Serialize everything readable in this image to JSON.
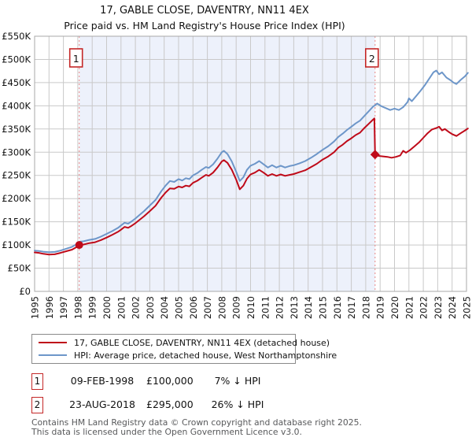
{
  "title": "17, GABLE CLOSE, DAVENTRY, NN11 4EX",
  "subtitle": "Price paid vs. HM Land Registry's House Price Index (HPI)",
  "chart_data": {
    "type": "line",
    "x_range": [
      1995,
      2025
    ],
    "y_range_pounds": [
      0,
      550000
    ],
    "grid": true,
    "legend_position": "below-left",
    "y_tick_values_k": [
      0,
      50,
      100,
      150,
      200,
      250,
      300,
      350,
      400,
      450,
      500,
      550
    ],
    "y_tick_labels": [
      "£0",
      "£50K",
      "£100K",
      "£150K",
      "£200K",
      "£250K",
      "£300K",
      "£350K",
      "£400K",
      "£450K",
      "£500K",
      "£550K"
    ],
    "x_tick_labels": [
      "1995",
      "1996",
      "1997",
      "1998",
      "1999",
      "2000",
      "2001",
      "2002",
      "2003",
      "2004",
      "2005",
      "2006",
      "2007",
      "2008",
      "2009",
      "2010",
      "2011",
      "2012",
      "2013",
      "2014",
      "2015",
      "2016",
      "2017",
      "2018",
      "2019",
      "2020",
      "2021",
      "2022",
      "2023",
      "2024",
      "2025"
    ],
    "shaded_region_years": [
      1998.1,
      2018.65
    ],
    "colors": {
      "property_line": "#bf0a19",
      "hpi_line": "#6d96c9",
      "shade": "#edf1fb",
      "grid": "#c9c9c9",
      "spine": "#a8a8a8",
      "event_dashed": "#e98585",
      "marker_box_border": "#c42727"
    },
    "series": [
      {
        "name": "17, GABLE CLOSE, DAVENTRY, NN11 4EX (detached house)",
        "color_key": "property_line",
        "points_year_priceK": [
          [
            1995.0,
            84
          ],
          [
            1995.3,
            83
          ],
          [
            1995.6,
            81
          ],
          [
            1996.0,
            79.5
          ],
          [
            1996.4,
            80
          ],
          [
            1996.8,
            83
          ],
          [
            1997.2,
            86.5
          ],
          [
            1997.6,
            90
          ],
          [
            1998.0,
            97
          ],
          [
            1998.1,
            100
          ],
          [
            1998.4,
            101
          ],
          [
            1998.8,
            104
          ],
          [
            1999.2,
            106
          ],
          [
            1999.6,
            110.5
          ],
          [
            2000.0,
            116
          ],
          [
            2000.4,
            122
          ],
          [
            2000.8,
            128.5
          ],
          [
            2001.0,
            133
          ],
          [
            2001.25,
            139
          ],
          [
            2001.5,
            137
          ],
          [
            2001.75,
            141.5
          ],
          [
            2002.0,
            147
          ],
          [
            2002.3,
            154.5
          ],
          [
            2002.6,
            162
          ],
          [
            2003.0,
            173
          ],
          [
            2003.4,
            184.5
          ],
          [
            2003.8,
            202
          ],
          [
            2004.1,
            213
          ],
          [
            2004.4,
            222
          ],
          [
            2004.7,
            221
          ],
          [
            2005.0,
            226
          ],
          [
            2005.25,
            224
          ],
          [
            2005.5,
            228
          ],
          [
            2005.75,
            226.5
          ],
          [
            2006.0,
            234
          ],
          [
            2006.3,
            238.5
          ],
          [
            2006.6,
            245
          ],
          [
            2006.9,
            251
          ],
          [
            2007.1,
            249
          ],
          [
            2007.4,
            256
          ],
          [
            2007.7,
            267
          ],
          [
            2008.0,
            280
          ],
          [
            2008.15,
            283
          ],
          [
            2008.4,
            277
          ],
          [
            2008.7,
            262
          ],
          [
            2009.0,
            241
          ],
          [
            2009.25,
            220
          ],
          [
            2009.5,
            228
          ],
          [
            2009.75,
            243
          ],
          [
            2010.0,
            252
          ],
          [
            2010.3,
            256
          ],
          [
            2010.6,
            262
          ],
          [
            2010.9,
            256
          ],
          [
            2011.2,
            249
          ],
          [
            2011.5,
            253
          ],
          [
            2011.8,
            249
          ],
          [
            2012.1,
            252
          ],
          [
            2012.4,
            249
          ],
          [
            2012.7,
            251
          ],
          [
            2013.0,
            253
          ],
          [
            2013.4,
            257
          ],
          [
            2013.8,
            261
          ],
          [
            2014.2,
            268
          ],
          [
            2014.6,
            275
          ],
          [
            2015.0,
            284
          ],
          [
            2015.4,
            291
          ],
          [
            2015.8,
            300
          ],
          [
            2016.1,
            310
          ],
          [
            2016.4,
            316
          ],
          [
            2016.7,
            324
          ],
          [
            2017.0,
            330
          ],
          [
            2017.3,
            337
          ],
          [
            2017.6,
            342
          ],
          [
            2017.9,
            352
          ],
          [
            2018.2,
            361
          ],
          [
            2018.5,
            370
          ],
          [
            2018.6,
            373
          ],
          [
            2018.65,
            295
          ],
          [
            2018.9,
            292
          ],
          [
            2019.2,
            291
          ],
          [
            2019.5,
            290
          ],
          [
            2019.8,
            288
          ],
          [
            2020.1,
            290
          ],
          [
            2020.4,
            293
          ],
          [
            2020.6,
            303
          ],
          [
            2020.8,
            299
          ],
          [
            2021.1,
            305
          ],
          [
            2021.4,
            313
          ],
          [
            2021.7,
            321
          ],
          [
            2022.0,
            331
          ],
          [
            2022.3,
            341
          ],
          [
            2022.6,
            349
          ],
          [
            2022.9,
            352
          ],
          [
            2023.1,
            355
          ],
          [
            2023.3,
            347
          ],
          [
            2023.5,
            350
          ],
          [
            2023.8,
            343
          ],
          [
            2024.0,
            339
          ],
          [
            2024.3,
            335
          ],
          [
            2024.6,
            341
          ],
          [
            2024.9,
            347
          ],
          [
            2025.1,
            351
          ]
        ]
      },
      {
        "name": "HPI: Average price, detached house, West Northamptonshire",
        "color_key": "hpi_line",
        "points_year_priceK": [
          [
            1995.0,
            88
          ],
          [
            1995.3,
            87
          ],
          [
            1995.6,
            85.5
          ],
          [
            1996.0,
            84.5
          ],
          [
            1996.4,
            85
          ],
          [
            1996.8,
            88
          ],
          [
            1997.2,
            92
          ],
          [
            1997.6,
            96
          ],
          [
            1998.0,
            103
          ],
          [
            1998.1,
            107
          ],
          [
            1998.4,
            108
          ],
          [
            1998.8,
            111
          ],
          [
            1999.2,
            113
          ],
          [
            1999.6,
            118
          ],
          [
            2000.0,
            124
          ],
          [
            2000.4,
            130
          ],
          [
            2000.8,
            137
          ],
          [
            2001.0,
            142
          ],
          [
            2001.25,
            148
          ],
          [
            2001.5,
            146
          ],
          [
            2001.75,
            151
          ],
          [
            2002.0,
            157
          ],
          [
            2002.3,
            165
          ],
          [
            2002.6,
            173
          ],
          [
            2003.0,
            185
          ],
          [
            2003.4,
            197
          ],
          [
            2003.8,
            216
          ],
          [
            2004.1,
            228
          ],
          [
            2004.4,
            238
          ],
          [
            2004.7,
            236
          ],
          [
            2005.0,
            242
          ],
          [
            2005.25,
            239
          ],
          [
            2005.5,
            244
          ],
          [
            2005.75,
            242
          ],
          [
            2006.0,
            250
          ],
          [
            2006.3,
            255
          ],
          [
            2006.6,
            262
          ],
          [
            2006.9,
            268
          ],
          [
            2007.1,
            266
          ],
          [
            2007.4,
            274
          ],
          [
            2007.7,
            286
          ],
          [
            2008.0,
            300
          ],
          [
            2008.15,
            303
          ],
          [
            2008.4,
            296
          ],
          [
            2008.7,
            280
          ],
          [
            2009.0,
            258
          ],
          [
            2009.25,
            238
          ],
          [
            2009.5,
            246
          ],
          [
            2009.75,
            262
          ],
          [
            2010.0,
            271
          ],
          [
            2010.3,
            275
          ],
          [
            2010.6,
            281
          ],
          [
            2010.9,
            274
          ],
          [
            2011.2,
            267
          ],
          [
            2011.5,
            272
          ],
          [
            2011.8,
            267
          ],
          [
            2012.1,
            271
          ],
          [
            2012.4,
            267
          ],
          [
            2012.7,
            270
          ],
          [
            2013.0,
            272
          ],
          [
            2013.4,
            276
          ],
          [
            2013.8,
            281
          ],
          [
            2014.2,
            288
          ],
          [
            2014.6,
            296
          ],
          [
            2015.0,
            305
          ],
          [
            2015.4,
            313
          ],
          [
            2015.8,
            323
          ],
          [
            2016.1,
            333
          ],
          [
            2016.4,
            340
          ],
          [
            2016.7,
            348
          ],
          [
            2017.0,
            355
          ],
          [
            2017.3,
            362
          ],
          [
            2017.6,
            368
          ],
          [
            2017.9,
            378
          ],
          [
            2018.2,
            388
          ],
          [
            2018.5,
            398
          ],
          [
            2018.8,
            405
          ],
          [
            2019.1,
            399
          ],
          [
            2019.4,
            395
          ],
          [
            2019.7,
            391
          ],
          [
            2020.0,
            394
          ],
          [
            2020.3,
            391
          ],
          [
            2020.6,
            397
          ],
          [
            2020.9,
            408
          ],
          [
            2021.0,
            416
          ],
          [
            2021.2,
            410
          ],
          [
            2021.5,
            421
          ],
          [
            2021.8,
            432
          ],
          [
            2022.1,
            444
          ],
          [
            2022.4,
            458
          ],
          [
            2022.7,
            472
          ],
          [
            2022.9,
            476
          ],
          [
            2023.1,
            468
          ],
          [
            2023.3,
            472
          ],
          [
            2023.6,
            461
          ],
          [
            2023.9,
            455
          ],
          [
            2024.1,
            450
          ],
          [
            2024.3,
            447
          ],
          [
            2024.6,
            456
          ],
          [
            2024.9,
            464
          ],
          [
            2025.1,
            471
          ]
        ]
      }
    ],
    "markers": [
      {
        "id": "1",
        "year": 1998.1,
        "priceK": 100,
        "shape": "circle"
      },
      {
        "id": "2",
        "year": 2018.65,
        "priceK": 295,
        "shape": "diamond"
      }
    ]
  },
  "legend": {
    "items": [
      {
        "label": "17, GABLE CLOSE, DAVENTRY, NN11 4EX (detached house)",
        "color_key": "property_line"
      },
      {
        "label": "HPI: Average price, detached house, West Northamptonshire",
        "color_key": "hpi_line"
      }
    ]
  },
  "annotations": [
    {
      "num": "1",
      "date": "09-FEB-1998",
      "price": "£100,000",
      "hpi_diff": "7% ↓ HPI"
    },
    {
      "num": "2",
      "date": "23-AUG-2018",
      "price": "£295,000",
      "hpi_diff": "26% ↓ HPI"
    }
  ],
  "footer": {
    "line1": "Contains HM Land Registry data © Crown copyright and database right 2025.",
    "line2": "This data is licensed under the Open Government Licence v3.0."
  }
}
